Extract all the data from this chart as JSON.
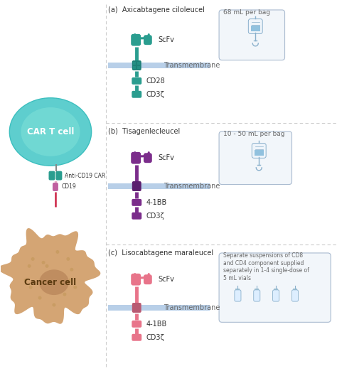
{
  "bg_color": "#ffffff",
  "teal": "#2a9d8f",
  "teal_dark": "#1e8077",
  "purple": "#7b2d8b",
  "purple_dark": "#5a1f6e",
  "pink": "#e8748a",
  "pink_dark": "#b85a72",
  "membrane_color": "#b8cfe8",
  "membrane_dark": "#8aafc8",
  "car_t_outer": "#5ecece",
  "car_t_inner": "#7de0d8",
  "car_t_border": "#3dbfbf",
  "cancer_color": "#d4a574",
  "cancer_inner": "#b8855a",
  "cancer_border": "#c09060",
  "label_a": "(a)  Axicabtagene ciloleucel",
  "label_b": "(b)  Tisagenlecleucel",
  "label_c": "(c)  Lisocabtagene maraleucel",
  "scfv_label": "ScFv",
  "transmembrane_label": "Transmembrane",
  "cd28_label": "CD28",
  "cd3z_label": "CD3ζ",
  "fbb_label": "4-1BB",
  "car_t_label": "CAR T cell",
  "cancer_label": "Cancer cell",
  "anti_cd19_label": "Anti-CD19 CAR",
  "cd19_label": "CD19",
  "bag_a_label": "68 mL per bag",
  "bag_b_label": "10 - 50 mL per bag",
  "bag_c_label": "Separate suspensions of CD8\nand CD4 component supplied\nseparately in 1-4 single-dose of\n5 mL vials",
  "sep_color": "#cccccc",
  "text_color": "#333333",
  "text_light": "#666666"
}
